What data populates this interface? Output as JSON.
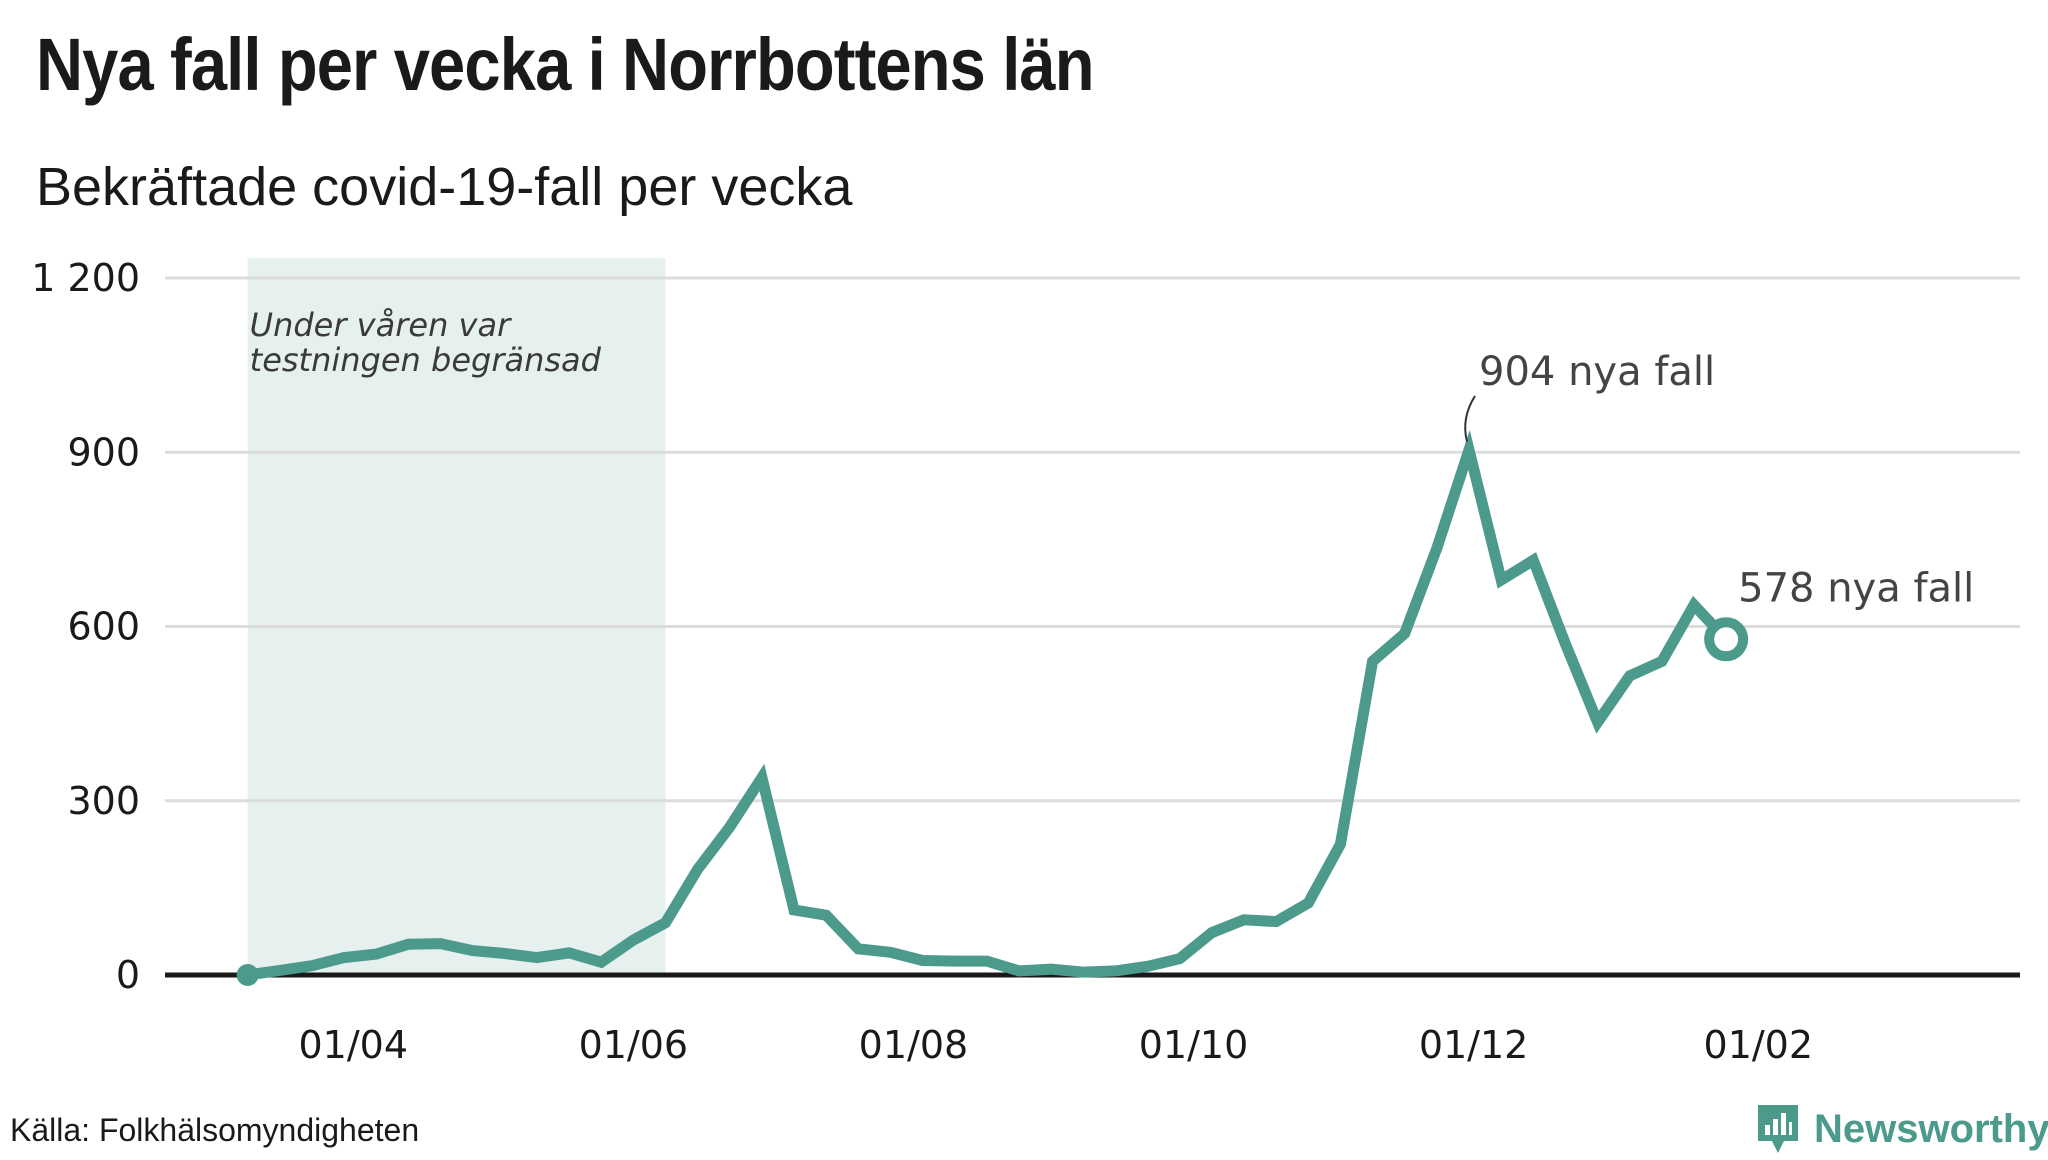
{
  "title": "Nya fall per vecka i Norrbottens län",
  "subtitle": "Bekräftade covid-19-fall per vecka",
  "source": "Källa: Folkhälsomyndigheten",
  "brand": "Newsworthy",
  "colors": {
    "line": "#4b9a8c",
    "shade": "#e6f0ee",
    "grid": "#dcdcdc",
    "axis": "#1a1a1a",
    "brand": "#4b9a8c"
  },
  "chart_data": {
    "type": "line",
    "title": "Nya fall per vecka i Norrbottens län",
    "subtitle": "Bekräftade covid-19-fall per vecka",
    "xlabel": "",
    "ylabel": "",
    "ylim": [
      0,
      1200
    ],
    "xlim": [
      "2020-02-20",
      "2021-03-30"
    ],
    "yticks": [
      0,
      300,
      600,
      900,
      1200
    ],
    "ytick_labels": [
      "0",
      "300",
      "600",
      "900",
      "1 200"
    ],
    "xticks": [
      "2020-04-01",
      "2020-06-01",
      "2020-08-01",
      "2020-10-01",
      "2020-12-01",
      "2021-02-01"
    ],
    "xtick_labels": [
      "01/04",
      "01/06",
      "01/08",
      "01/10",
      "01/12",
      "01/02"
    ],
    "grid": true,
    "shaded_region": {
      "start": "2020-03-09",
      "end": "2020-06-08",
      "label_lines": [
        "Under våren var",
        "testningen begränsad"
      ]
    },
    "series": [
      {
        "x": [
          "2020-03-09",
          "2020-03-16",
          "2020-03-23",
          "2020-03-30",
          "2020-04-06",
          "2020-04-13",
          "2020-04-20",
          "2020-04-27",
          "2020-05-04",
          "2020-05-11",
          "2020-05-18",
          "2020-05-25",
          "2020-06-01",
          "2020-06-08",
          "2020-06-15",
          "2020-06-22",
          "2020-06-29",
          "2020-07-06",
          "2020-07-13",
          "2020-07-20",
          "2020-07-27",
          "2020-08-03",
          "2020-08-10",
          "2020-08-17",
          "2020-08-24",
          "2020-08-31",
          "2020-09-07",
          "2020-09-14",
          "2020-09-21",
          "2020-09-28",
          "2020-10-05",
          "2020-10-12",
          "2020-10-19",
          "2020-10-26",
          "2020-11-02",
          "2020-11-09",
          "2020-11-16",
          "2020-11-23",
          "2020-11-30",
          "2020-12-07",
          "2020-12-14",
          "2020-12-21",
          "2020-12-28",
          "2021-01-04",
          "2021-01-11",
          "2021-01-18",
          "2021-01-25"
        ],
        "values": [
          0,
          8,
          16,
          30,
          36,
          53,
          54,
          42,
          37,
          30,
          38,
          22,
          60,
          90,
          182,
          255,
          340,
          112,
          103,
          45,
          39,
          25,
          24,
          24,
          7,
          10,
          5,
          7,
          15,
          28,
          73,
          95,
          92,
          124,
          225,
          540,
          588,
          735,
          904,
          680,
          714,
          570,
          435,
          515,
          540,
          637,
          578
        ]
      }
    ],
    "annotations": [
      {
        "x": "2020-11-30",
        "y": 904,
        "text": "904 nya fall"
      },
      {
        "x": "2021-01-25",
        "y": 578,
        "text": "578 nya fall"
      }
    ]
  }
}
